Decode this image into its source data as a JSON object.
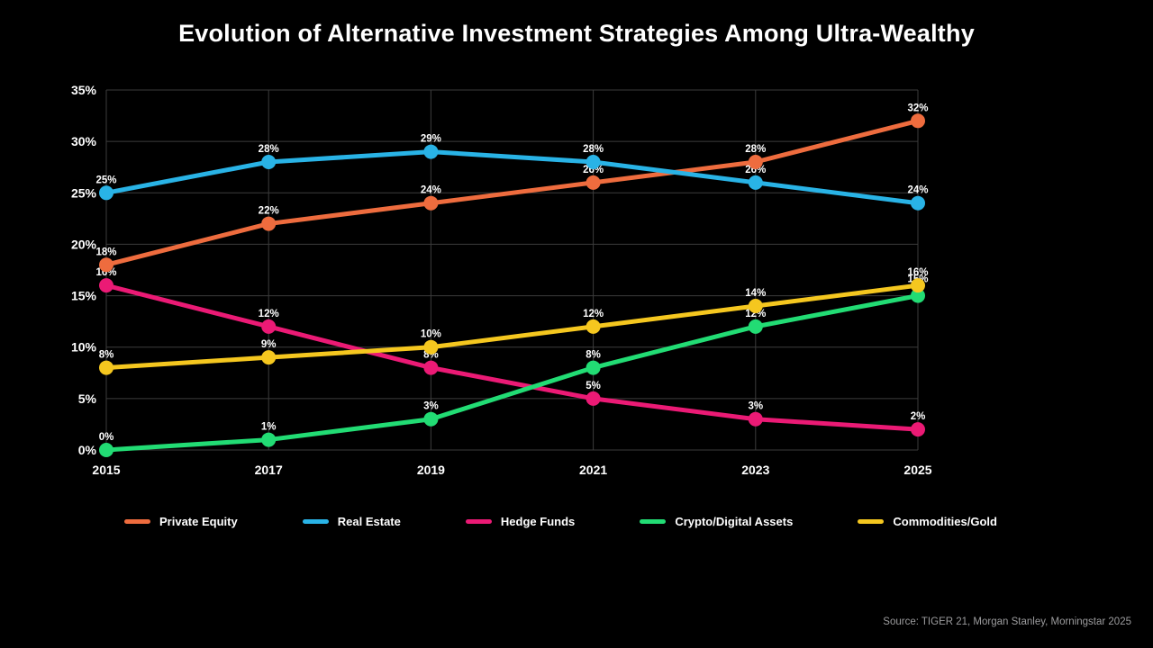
{
  "title": "Evolution of Alternative Investment Strategies Among Ultra-Wealthy",
  "source": "Source: TIGER 21, Morgan Stanley, Morningstar 2025",
  "colors": {
    "background": "#000000",
    "grid": "#3C3C3C",
    "text": "#FFFFFF",
    "source_text": "#9C9C9E"
  },
  "chart_data": {
    "type": "line",
    "title": "Evolution of Alternative Investment Strategies Among Ultra-Wealthy",
    "x_labels": [
      "2015",
      "2017",
      "2019",
      "2021",
      "2023",
      "2025"
    ],
    "ylim": [
      0,
      35
    ],
    "ytick_step": 5,
    "ytick_format": "{v}%",
    "point_label_format": "{v}%",
    "grid": true,
    "legend_position": "bottom",
    "series": [
      {
        "name": "Private Equity",
        "color": "#EE6C3E",
        "values": [
          18,
          22,
          24,
          26,
          28,
          32
        ]
      },
      {
        "name": "Real Estate",
        "color": "#29B3E6",
        "values": [
          25,
          28,
          29,
          28,
          26,
          24
        ]
      },
      {
        "name": "Hedge Funds",
        "color": "#EB1A75",
        "values": [
          16,
          12,
          8,
          5,
          3,
          2
        ]
      },
      {
        "name": "Crypto/Digital Assets",
        "color": "#22DC74",
        "values": [
          0,
          1,
          3,
          8,
          12,
          15
        ],
        "label_dy": [
          0,
          0,
          0,
          0,
          0,
          -4
        ]
      },
      {
        "name": "Commodities/Gold",
        "color": "#F5C71F",
        "values": [
          8,
          9,
          10,
          12,
          14,
          16
        ]
      }
    ]
  }
}
